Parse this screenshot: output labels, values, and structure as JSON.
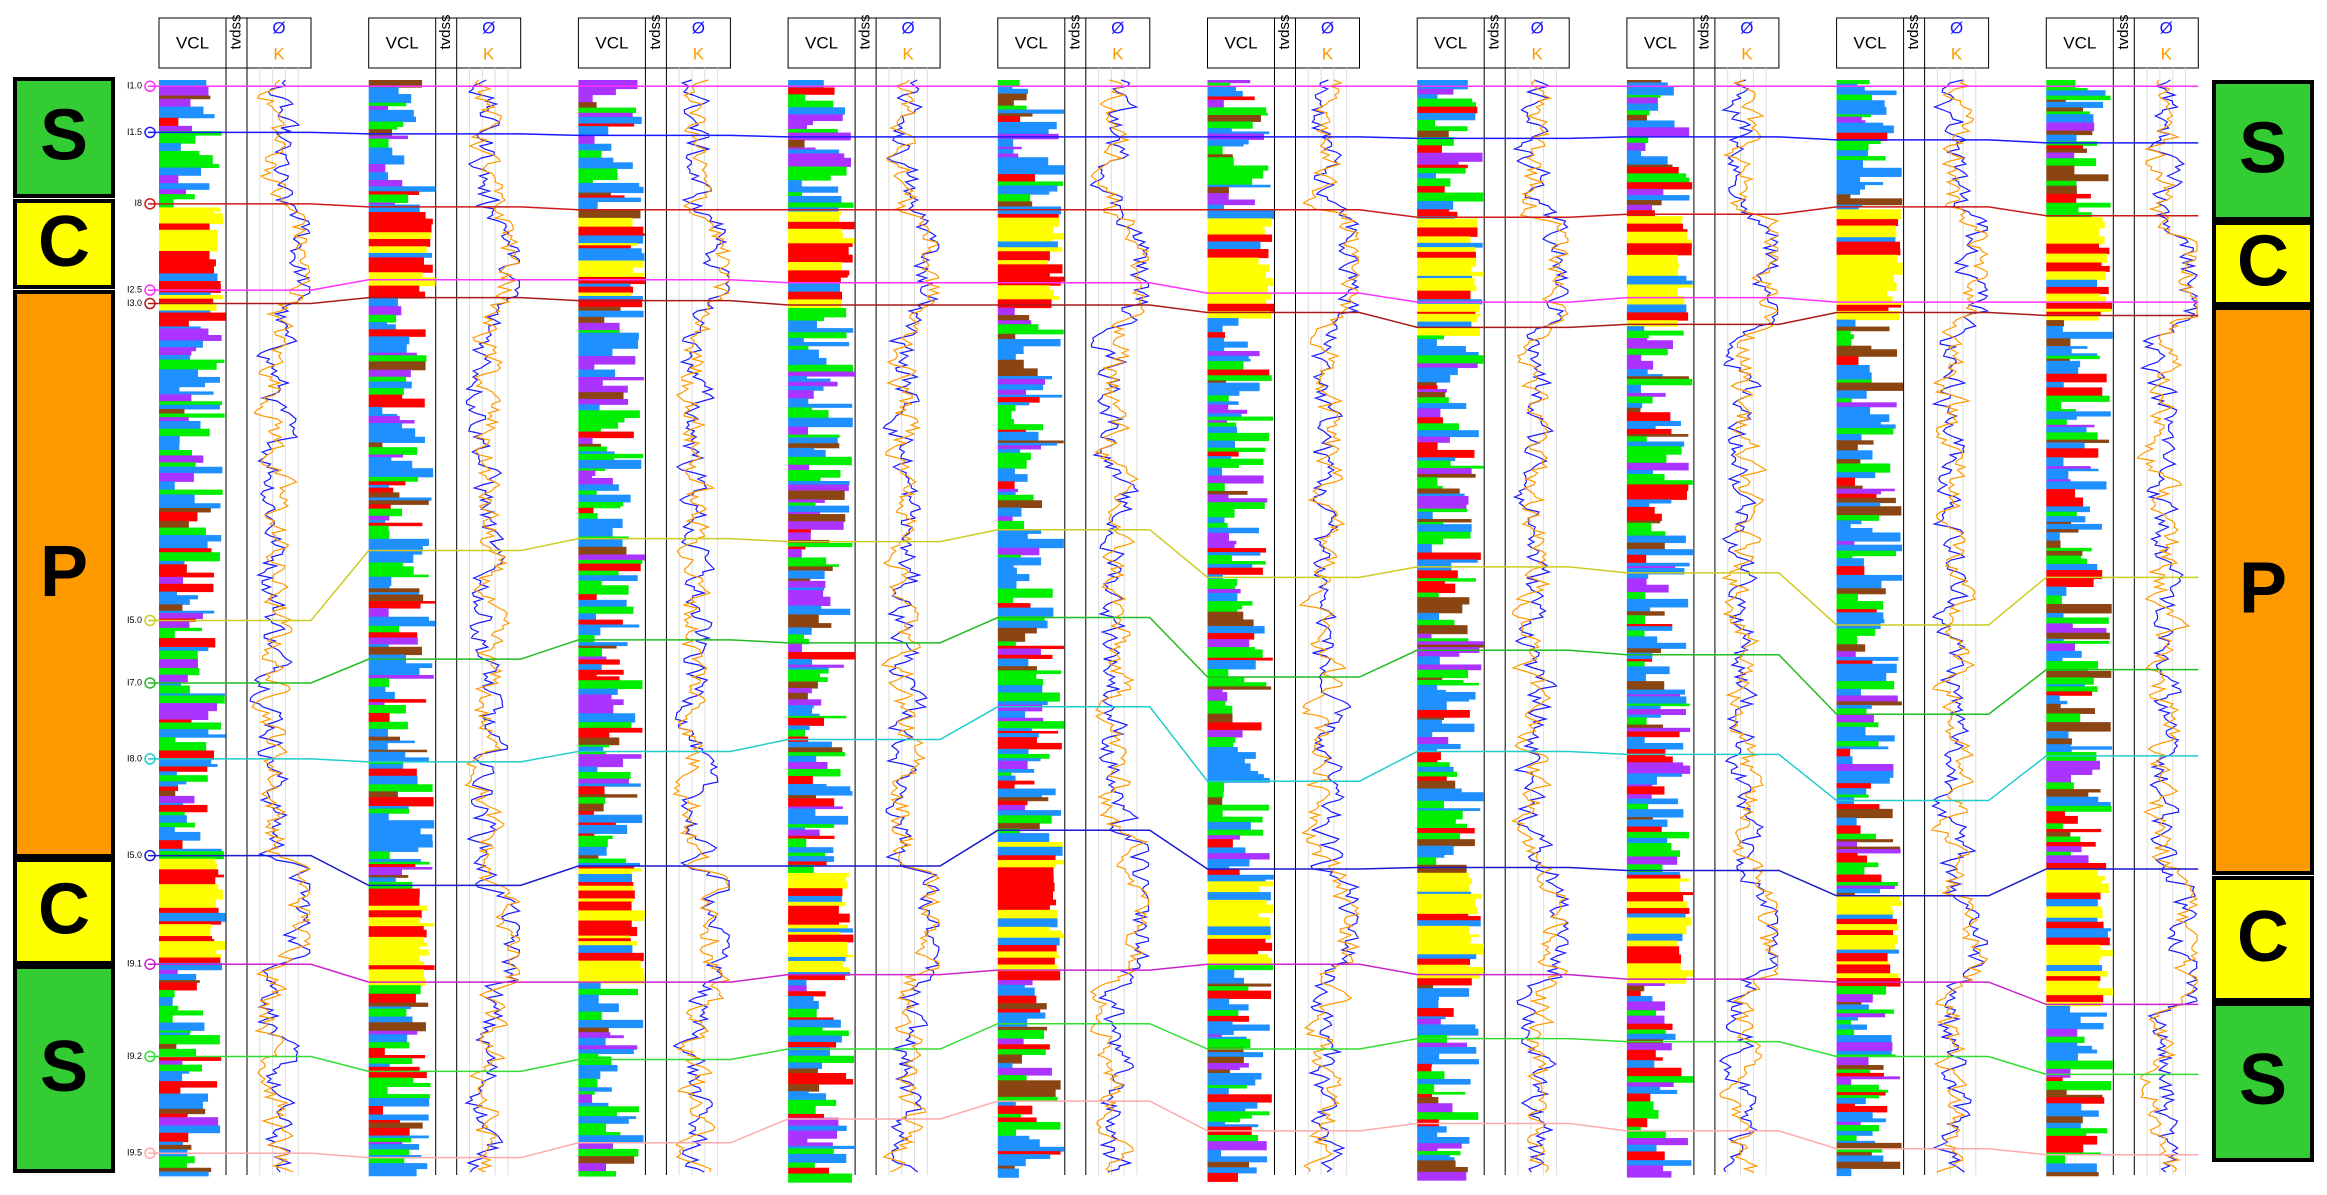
{
  "wells": [
    {
      "headers": [
        "VCL",
        "tvdss",
        "Ø",
        "K"
      ]
    },
    {
      "headers": [
        "VCL",
        "tvdss",
        "Ø",
        "K"
      ]
    },
    {
      "headers": [
        "VCL",
        "tvdss",
        "Ø",
        "K"
      ]
    },
    {
      "headers": [
        "VCL",
        "tvdss",
        "Ø",
        "K"
      ]
    },
    {
      "headers": [
        "VCL",
        "tvdss",
        "Ø",
        "K"
      ]
    },
    {
      "headers": [
        "VCL",
        "tvdss",
        "Ø",
        "K"
      ]
    },
    {
      "headers": [
        "VCL",
        "tvdss",
        "Ø",
        "K"
      ]
    },
    {
      "headers": [
        "VCL",
        "tvdss",
        "Ø",
        "K"
      ]
    },
    {
      "headers": [
        "VCL",
        "tvdss",
        "Ø",
        "K"
      ]
    },
    {
      "headers": [
        "VCL",
        "tvdss",
        "Ø",
        "K"
      ]
    }
  ],
  "zones_left": [
    "S",
    "C",
    "P",
    "C",
    "S"
  ],
  "zones_right": [
    "S",
    "C",
    "P",
    "C",
    "S"
  ],
  "markers": [
    "I1.0",
    "I1.5",
    "I8",
    "I2.5",
    "I3.0",
    "I5.0",
    "I7.0",
    "I8.0",
    "I5.0",
    "I9.1",
    "I9.2",
    "I9.5"
  ]
}
